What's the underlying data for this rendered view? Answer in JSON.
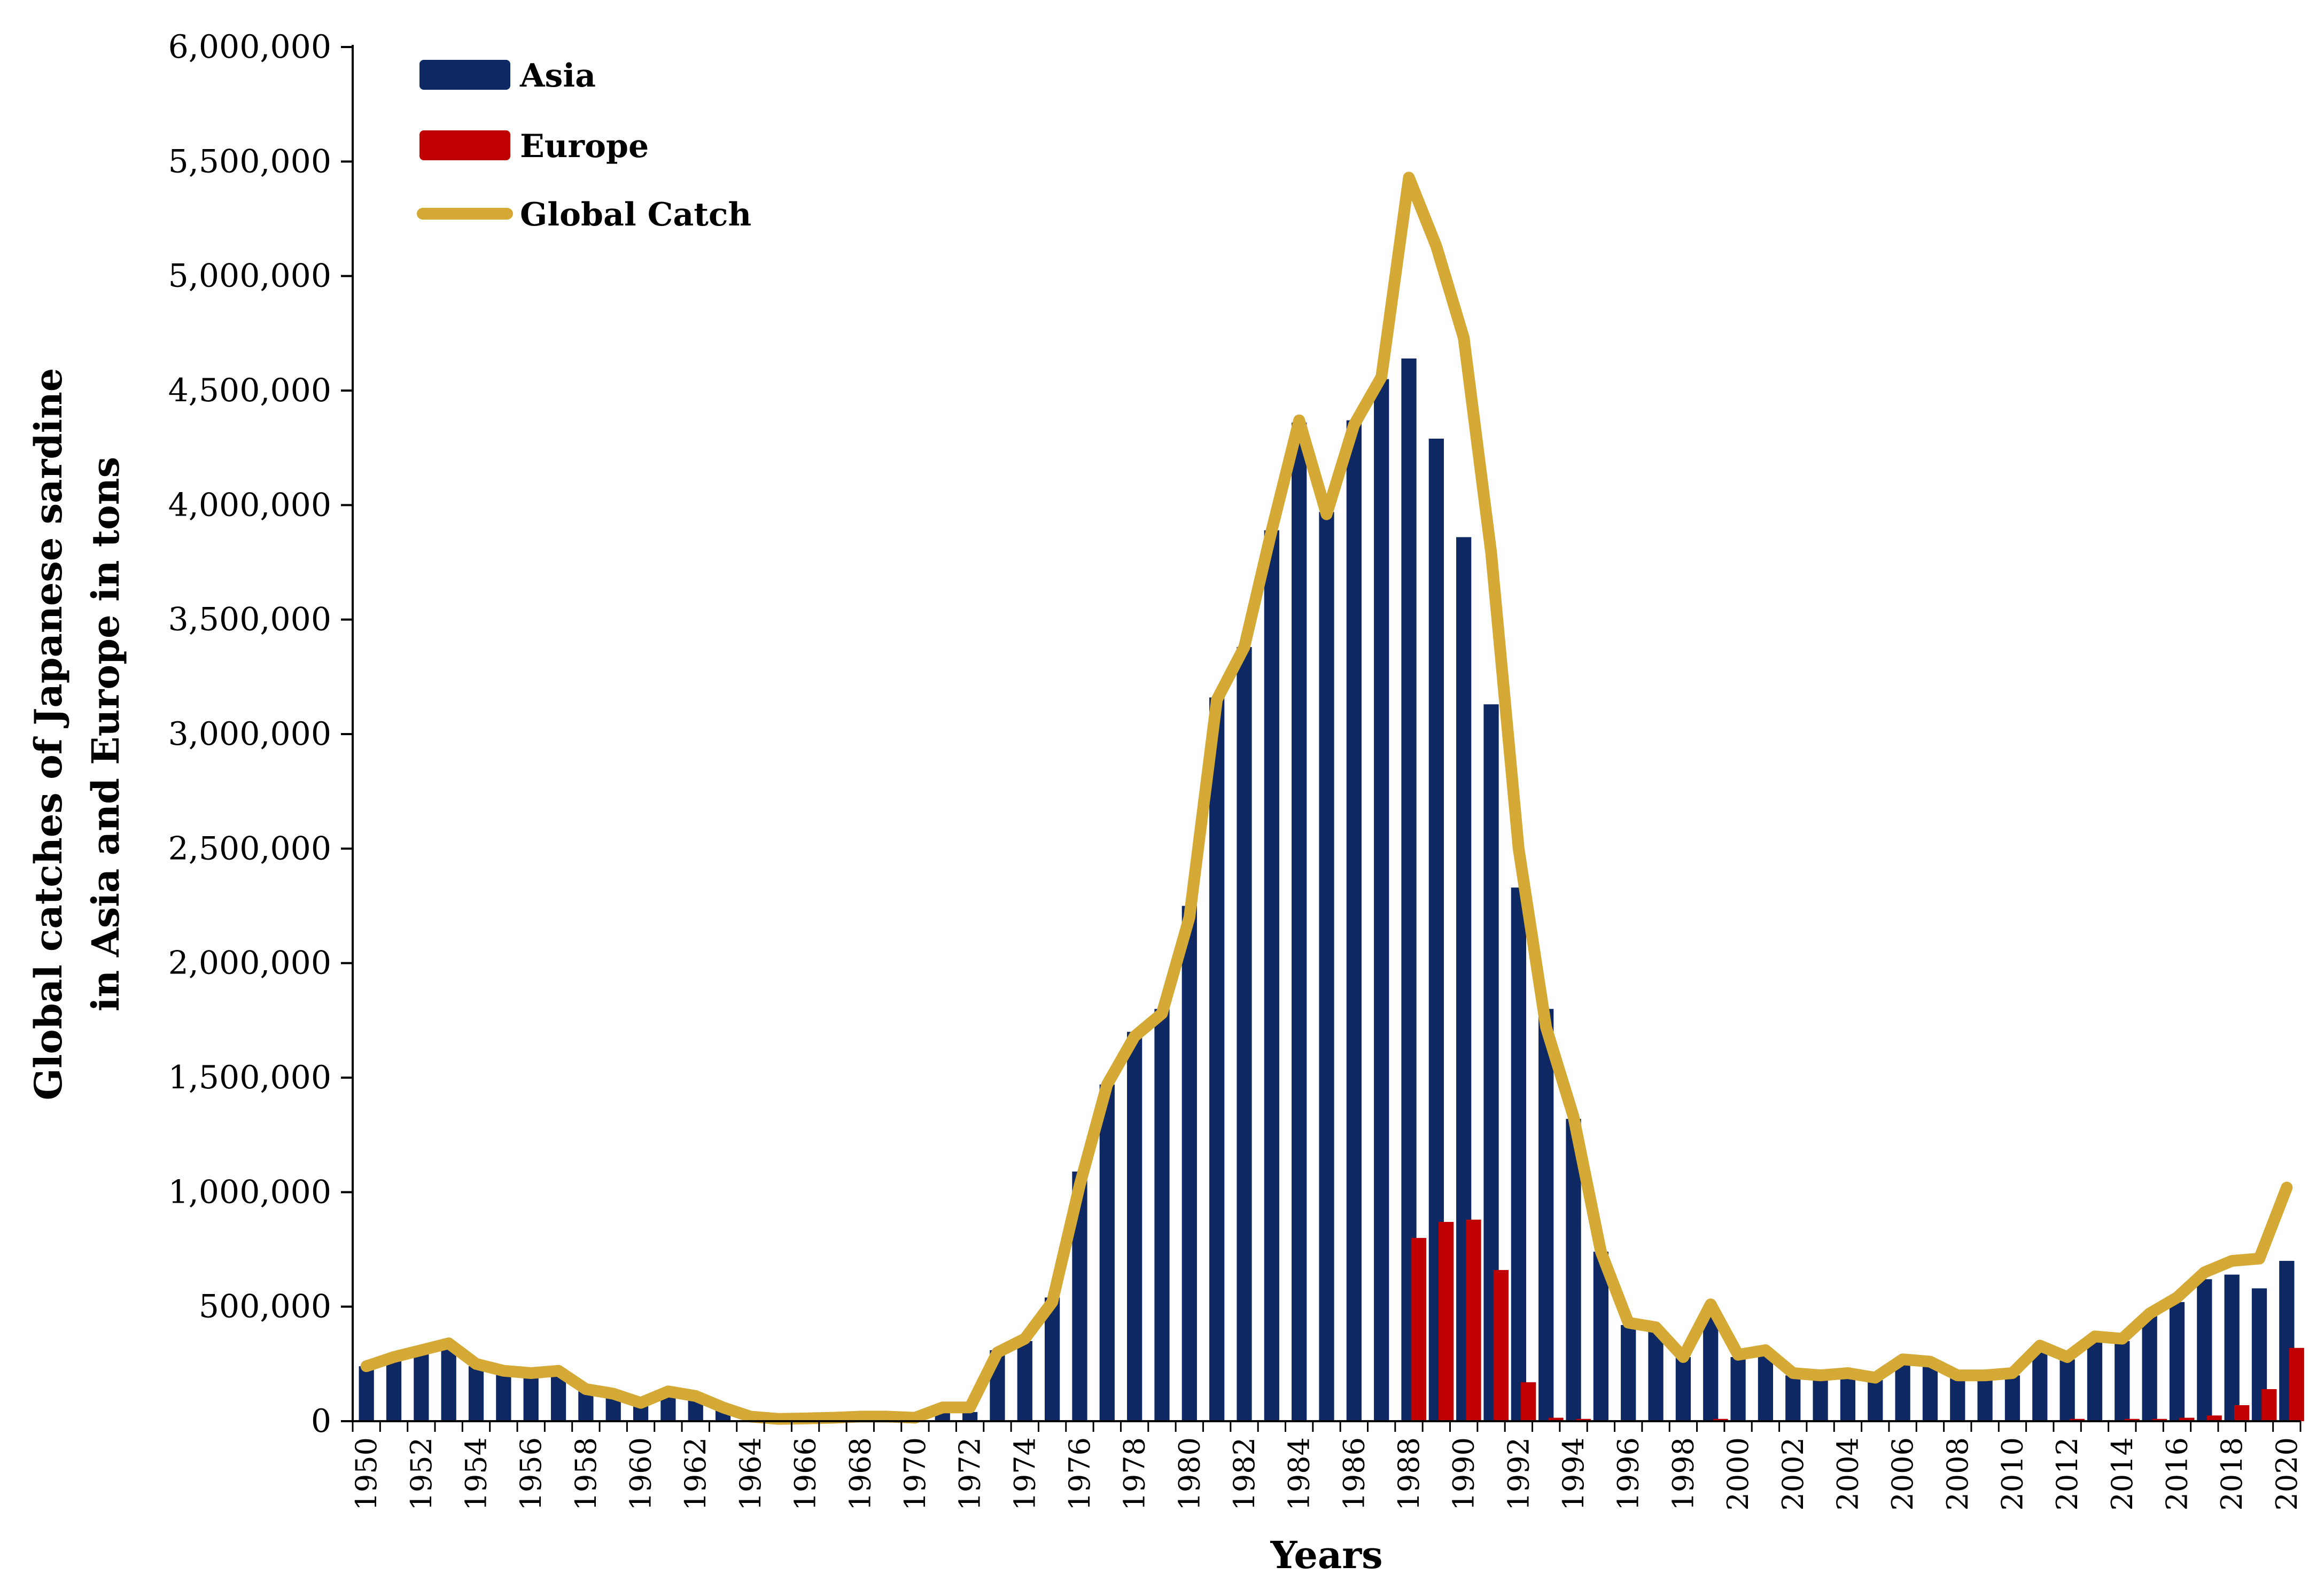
{
  "chart_data": {
    "type": "bar",
    "title": "",
    "xlabel": "Years",
    "ylabel_lines": [
      "Global catches of Japanese sardine",
      "in Asia and Europe in tons"
    ],
    "ylim": [
      0,
      6000000
    ],
    "yticks": [
      0,
      500000,
      1000000,
      1500000,
      2000000,
      2500000,
      3000000,
      3500000,
      4000000,
      4500000,
      5000000,
      5500000,
      6000000
    ],
    "ytick_labels": [
      "0",
      "500,000",
      "1,000,000",
      "1,500,000",
      "2,000,000",
      "2,500,000",
      "3,000,000",
      "3,500,000",
      "4,000,000",
      "4,500,000",
      "5,000,000",
      "5,500,000",
      "6,000,000"
    ],
    "categories": [
      1950,
      1951,
      1952,
      1953,
      1954,
      1955,
      1956,
      1957,
      1958,
      1959,
      1960,
      1961,
      1962,
      1963,
      1964,
      1965,
      1966,
      1967,
      1968,
      1969,
      1970,
      1971,
      1972,
      1973,
      1974,
      1975,
      1976,
      1977,
      1978,
      1979,
      1980,
      1981,
      1982,
      1983,
      1984,
      1985,
      1986,
      1987,
      1988,
      1989,
      1990,
      1991,
      1992,
      1993,
      1994,
      1995,
      1996,
      1997,
      1998,
      1999,
      2000,
      2001,
      2002,
      2003,
      2004,
      2005,
      2006,
      2007,
      2008,
      2009,
      2010,
      2011,
      2012,
      2013,
      2014,
      2015,
      2016,
      2017,
      2018,
      2019,
      2020
    ],
    "xtick_labels": [
      "1950",
      "1952",
      "1954",
      "1956",
      "1958",
      "1960",
      "1962",
      "1964",
      "1966",
      "1968",
      "1970",
      "1972",
      "1974",
      "1976",
      "1978",
      "1980",
      "1982",
      "1984",
      "1986",
      "1988",
      "1990",
      "1992",
      "1994",
      "1996",
      "1998",
      "2000",
      "2002",
      "2004",
      "2006",
      "2008",
      "2010",
      "2012",
      "2014",
      "2016",
      "2018",
      "2020"
    ],
    "legend_position": "top-left",
    "series": [
      {
        "name": "Asia",
        "kind": "bar",
        "color": "#0d2862",
        "values": [
          240000,
          280000,
          310000,
          330000,
          240000,
          210000,
          200000,
          210000,
          130000,
          110000,
          70000,
          120000,
          100000,
          50000,
          10000,
          5000,
          8000,
          10000,
          15000,
          15000,
          10000,
          50000,
          40000,
          310000,
          350000,
          540000,
          1090000,
          1470000,
          1700000,
          1800000,
          2250000,
          3160000,
          3380000,
          3890000,
          4360000,
          3970000,
          4370000,
          4550000,
          4640000,
          4290000,
          3860000,
          3130000,
          2330000,
          1800000,
          1320000,
          740000,
          420000,
          400000,
          280000,
          500000,
          280000,
          310000,
          200000,
          190000,
          200000,
          180000,
          260000,
          250000,
          190000,
          190000,
          200000,
          320000,
          270000,
          360000,
          350000,
          460000,
          520000,
          620000,
          640000,
          580000,
          700000
        ]
      },
      {
        "name": "Europe",
        "kind": "bar",
        "color": "#c00000",
        "values": [
          0,
          0,
          0,
          0,
          0,
          0,
          0,
          0,
          0,
          0,
          0,
          0,
          0,
          0,
          0,
          0,
          0,
          0,
          0,
          0,
          0,
          0,
          0,
          0,
          0,
          0,
          0,
          0,
          0,
          0,
          0,
          0,
          0,
          0,
          0,
          0,
          0,
          0,
          800000,
          870000,
          880000,
          660000,
          170000,
          15000,
          10000,
          0,
          0,
          0,
          0,
          10000,
          0,
          0,
          0,
          0,
          0,
          0,
          0,
          0,
          0,
          0,
          0,
          0,
          10000,
          0,
          10000,
          10000,
          15000,
          25000,
          70000,
          140000,
          320000
        ]
      },
      {
        "name": "Global Catch",
        "kind": "line",
        "color": "#d4a935",
        "values": [
          240000,
          280000,
          310000,
          340000,
          250000,
          220000,
          210000,
          220000,
          140000,
          120000,
          80000,
          130000,
          110000,
          60000,
          20000,
          10000,
          12000,
          15000,
          20000,
          20000,
          15000,
          60000,
          60000,
          300000,
          360000,
          520000,
          1030000,
          1470000,
          1680000,
          1780000,
          2200000,
          3150000,
          3380000,
          3890000,
          4370000,
          3960000,
          4350000,
          4560000,
          5430000,
          5130000,
          4730000,
          3790000,
          2500000,
          1720000,
          1330000,
          740000,
          430000,
          410000,
          280000,
          510000,
          290000,
          310000,
          210000,
          200000,
          210000,
          190000,
          270000,
          260000,
          200000,
          200000,
          210000,
          330000,
          280000,
          370000,
          360000,
          470000,
          540000,
          650000,
          700000,
          710000,
          1020000
        ]
      }
    ]
  }
}
